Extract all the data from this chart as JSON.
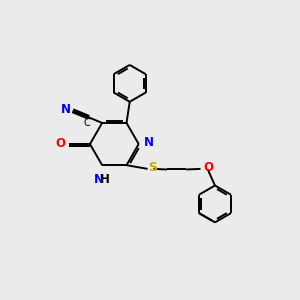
{
  "background_color": "#ebebeb",
  "atom_colors": {
    "C": "#000000",
    "N": "#0000ff",
    "O": "#ff0000",
    "S": "#ccaa00",
    "H": "#000000"
  },
  "font_size": 8.5,
  "line_width": 1.4
}
